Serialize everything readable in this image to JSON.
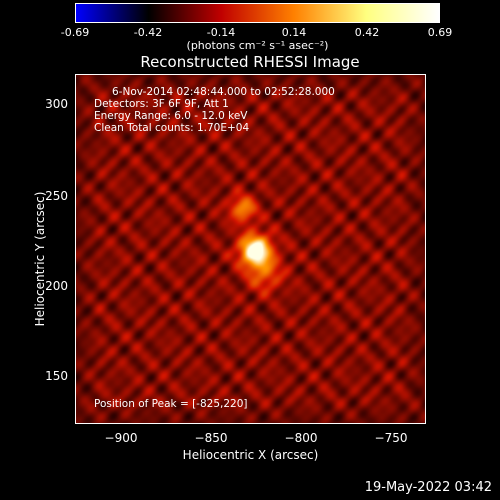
{
  "colorbar": {
    "tick_labels": [
      "-0.69",
      "-0.42",
      "-0.14",
      "0.14",
      "0.42",
      "0.69"
    ],
    "unit": "(photons cm⁻² s⁻¹ asec⁻²)",
    "range": [
      -0.69,
      0.69
    ],
    "colormap": "blue-black-red-yellow-white",
    "colors": [
      "#0000ff",
      "#000000",
      "#c00000",
      "#ff8000",
      "#ffff80",
      "#ffffff"
    ]
  },
  "annotations": {
    "line1": "6-Nov-2014 02:48:44.000 to 02:52:28.000",
    "line2": "Detectors: 3F 6F 9F, Att 1",
    "line3": "Energy Range: 6.0 - 12.0 keV",
    "line4": "Clean     Total counts: 1.70E+04",
    "peak": "Position of Peak = [-825,220]"
  },
  "footer": {
    "date": "19-May-2022 03:42"
  },
  "chart_data": {
    "type": "heatmap",
    "title": "Reconstructed RHESSI Image",
    "xlabel": "Heliocentric X (arcsec)",
    "ylabel": "Heliocentric Y (arcsec)",
    "xlim": [
      -925,
      -730
    ],
    "ylim": [
      123,
      318
    ],
    "x_ticks": [
      -900,
      -850,
      -800,
      -750
    ],
    "y_ticks": [
      150,
      200,
      250,
      300
    ],
    "x_tick_labels": [
      "−900",
      "−850",
      "−800",
      "−750"
    ],
    "y_tick_labels": [
      "150",
      "200",
      "250",
      "300"
    ],
    "peak_position": [
      -825,
      220
    ],
    "sources": [
      {
        "x": -825,
        "y": 220,
        "amplitude": 1.0,
        "sigma": 6
      },
      {
        "x": -832,
        "y": 243,
        "amplitude": 0.5,
        "sigma": 5
      },
      {
        "x": -820,
        "y": 207,
        "amplitude": 0.35,
        "sigma": 7
      }
    ]
  }
}
